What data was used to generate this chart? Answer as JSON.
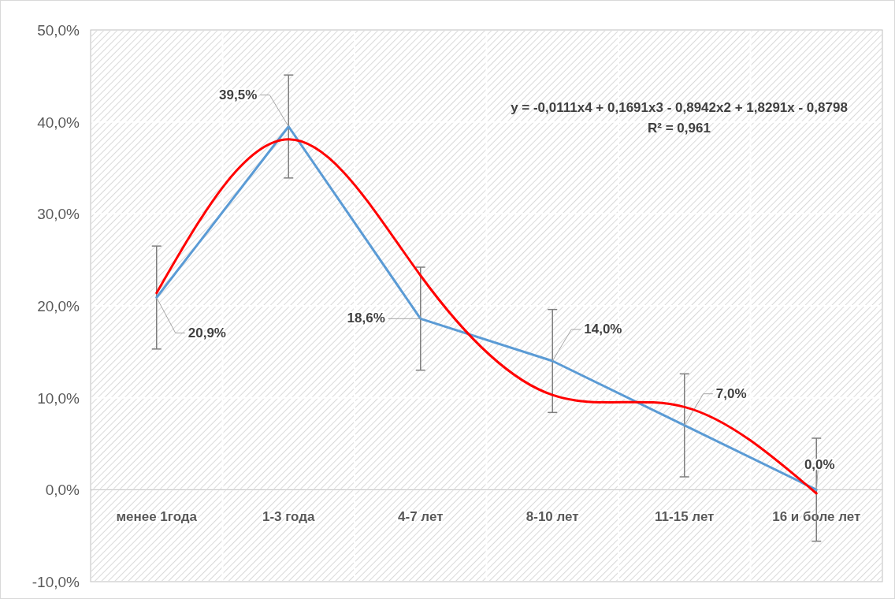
{
  "chart_data": {
    "type": "line",
    "categories": [
      "менее 1года",
      "1-3 года",
      "4-7 лет",
      "8-10 лет",
      "11-15 лет",
      "16 и боле лет"
    ],
    "series": [
      {
        "color": "#5b9bd5",
        "values": [
          20.9,
          39.5,
          18.6,
          14.0,
          7.0,
          0.0
        ],
        "errors": [
          5.6,
          5.6,
          5.6,
          5.6,
          5.6,
          5.6
        ],
        "value_labels": [
          "20,9%",
          "39,5%",
          "18,6%",
          "14,0%",
          "7,0%",
          "0,0%"
        ]
      },
      {
        "color": "#ff0000",
        "values": [
          21.4,
          38.1,
          23.3,
          10.3,
          9.0,
          -0.4
        ]
      }
    ],
    "ylim": [
      -10,
      50
    ],
    "yticks": [
      {
        "value": -10,
        "label": "-10,0%"
      },
      {
        "value": 0,
        "label": "0,0%"
      },
      {
        "value": 10,
        "label": "10,0%"
      },
      {
        "value": 20,
        "label": "20,0%"
      },
      {
        "value": 30,
        "label": "30,0%"
      },
      {
        "value": 40,
        "label": "40,0%"
      },
      {
        "value": 50,
        "label": "50,0%"
      }
    ],
    "grid": true,
    "marker": "none",
    "line_style": "solid",
    "annotations": [
      "y = -0,0111x4 + 0,1691x3 - 0,8942x2 + 1,8291x - 0,8798",
      "R² = 0,961"
    ]
  }
}
